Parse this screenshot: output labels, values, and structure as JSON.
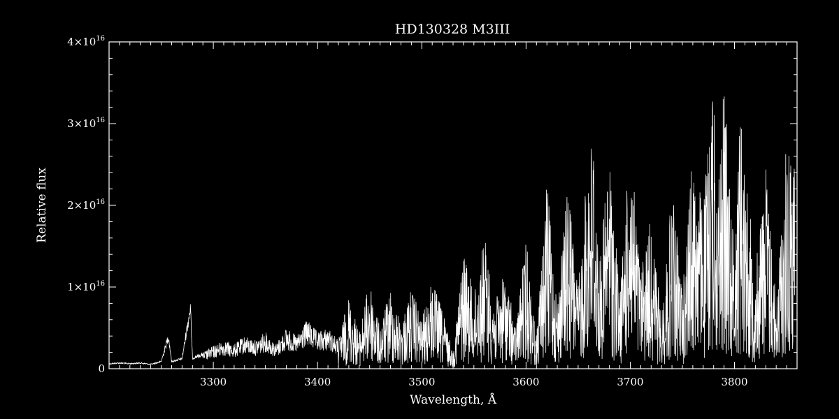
{
  "chart_data": {
    "type": "line",
    "title": "HD130328   M3III",
    "xlabel": "Wavelength, Å",
    "ylabel": "Relative flux",
    "xlim": [
      3200,
      3860
    ],
    "ylim": [
      0,
      4e+16
    ],
    "grid": false,
    "colors": {
      "background": "#000000",
      "foreground": "#ffffff"
    },
    "x_ticks": [
      {
        "value": 3300,
        "label": "3300"
      },
      {
        "value": 3400,
        "label": "3400"
      },
      {
        "value": 3500,
        "label": "3500"
      },
      {
        "value": 3600,
        "label": "3600"
      },
      {
        "value": 3700,
        "label": "3700"
      },
      {
        "value": 3800,
        "label": "3800"
      }
    ],
    "y_ticks": [
      {
        "value": 0,
        "mant": "0",
        "exp": ""
      },
      {
        "value": 1e+16,
        "mant": "1×10",
        "exp": "16"
      },
      {
        "value": 2e+16,
        "mant": "2×10",
        "exp": "16"
      },
      {
        "value": 3e+16,
        "mant": "3×10",
        "exp": "16"
      },
      {
        "value": 4e+16,
        "mant": "4×10",
        "exp": "16"
      }
    ],
    "series": [
      {
        "x": [
          3200,
          3210,
          3220,
          3230,
          3240,
          3250,
          3257,
          3260,
          3270,
          3278,
          3280,
          3290,
          3300,
          3310,
          3320,
          3330,
          3340,
          3350,
          3360,
          3370,
          3380,
          3390,
          3400,
          3410,
          3420,
          3430,
          3440,
          3450,
          3460,
          3470,
          3480,
          3490,
          3500,
          3510,
          3520,
          3530,
          3540,
          3550,
          3560,
          3570,
          3580,
          3590,
          3600,
          3610,
          3620,
          3630,
          3640,
          3650,
          3660,
          3665,
          3670,
          3680,
          3690,
          3700,
          3710,
          3720,
          3730,
          3740,
          3750,
          3760,
          3770,
          3780,
          3785,
          3790,
          3800,
          3805,
          3810,
          3820,
          3830,
          3840,
          3850,
          3858
        ],
        "y": [
          700000000000000.0,
          800000000000000.0,
          700000000000000.0,
          800000000000000.0,
          600000000000000.0,
          1000000000000000.0,
          4500000000000000.0,
          1000000000000000.0,
          1400000000000000.0,
          8500000000000000.0,
          1500000000000000.0,
          2000000000000000.0,
          2800000000000000.0,
          3500000000000000.0,
          3000000000000000.0,
          4000000000000000.0,
          3500000000000000.0,
          4500000000000000.0,
          3000000000000000.0,
          5000000000000000.0,
          4000000000000000.0,
          6000000000000000.0,
          4500000000000000.0,
          5000000000000000.0,
          3500000000000000.0,
          9000000000000000.0,
          4500000000000000.0,
          1.1e+16,
          5000000000000000.0,
          1e+16,
          5500000000000000.0,
          1e+16,
          6000000000000000.0,
          1.1e+16,
          7000000000000000.0,
          2000000000000000.0,
          1.5e+16,
          9000000000000000.0,
          1.65e+16,
          8000000000000000.0,
          1.2e+16,
          5000000000000000.0,
          1.6e+16,
          4000000000000000.0,
          2.3e+16,
          8000000000000000.0,
          2.3e+16,
          1e+16,
          2.7e+16,
          2.95e+16,
          1.2e+16,
          2.7e+16,
          9000000000000000.0,
          2.8e+16,
          1.2e+16,
          1.9e+16,
          6000000000000000.0,
          2.2e+16,
          1e+16,
          2.7e+16,
          2e+16,
          3.65e+16,
          2.4e+16,
          3.5e+16,
          1.5e+16,
          3.4e+16,
          2.6e+16,
          1.2e+16,
          2.6e+16,
          8000000000000000.0,
          2.9e+16,
          2.6e+16
        ],
        "noise_scale": 1.0
      }
    ]
  }
}
